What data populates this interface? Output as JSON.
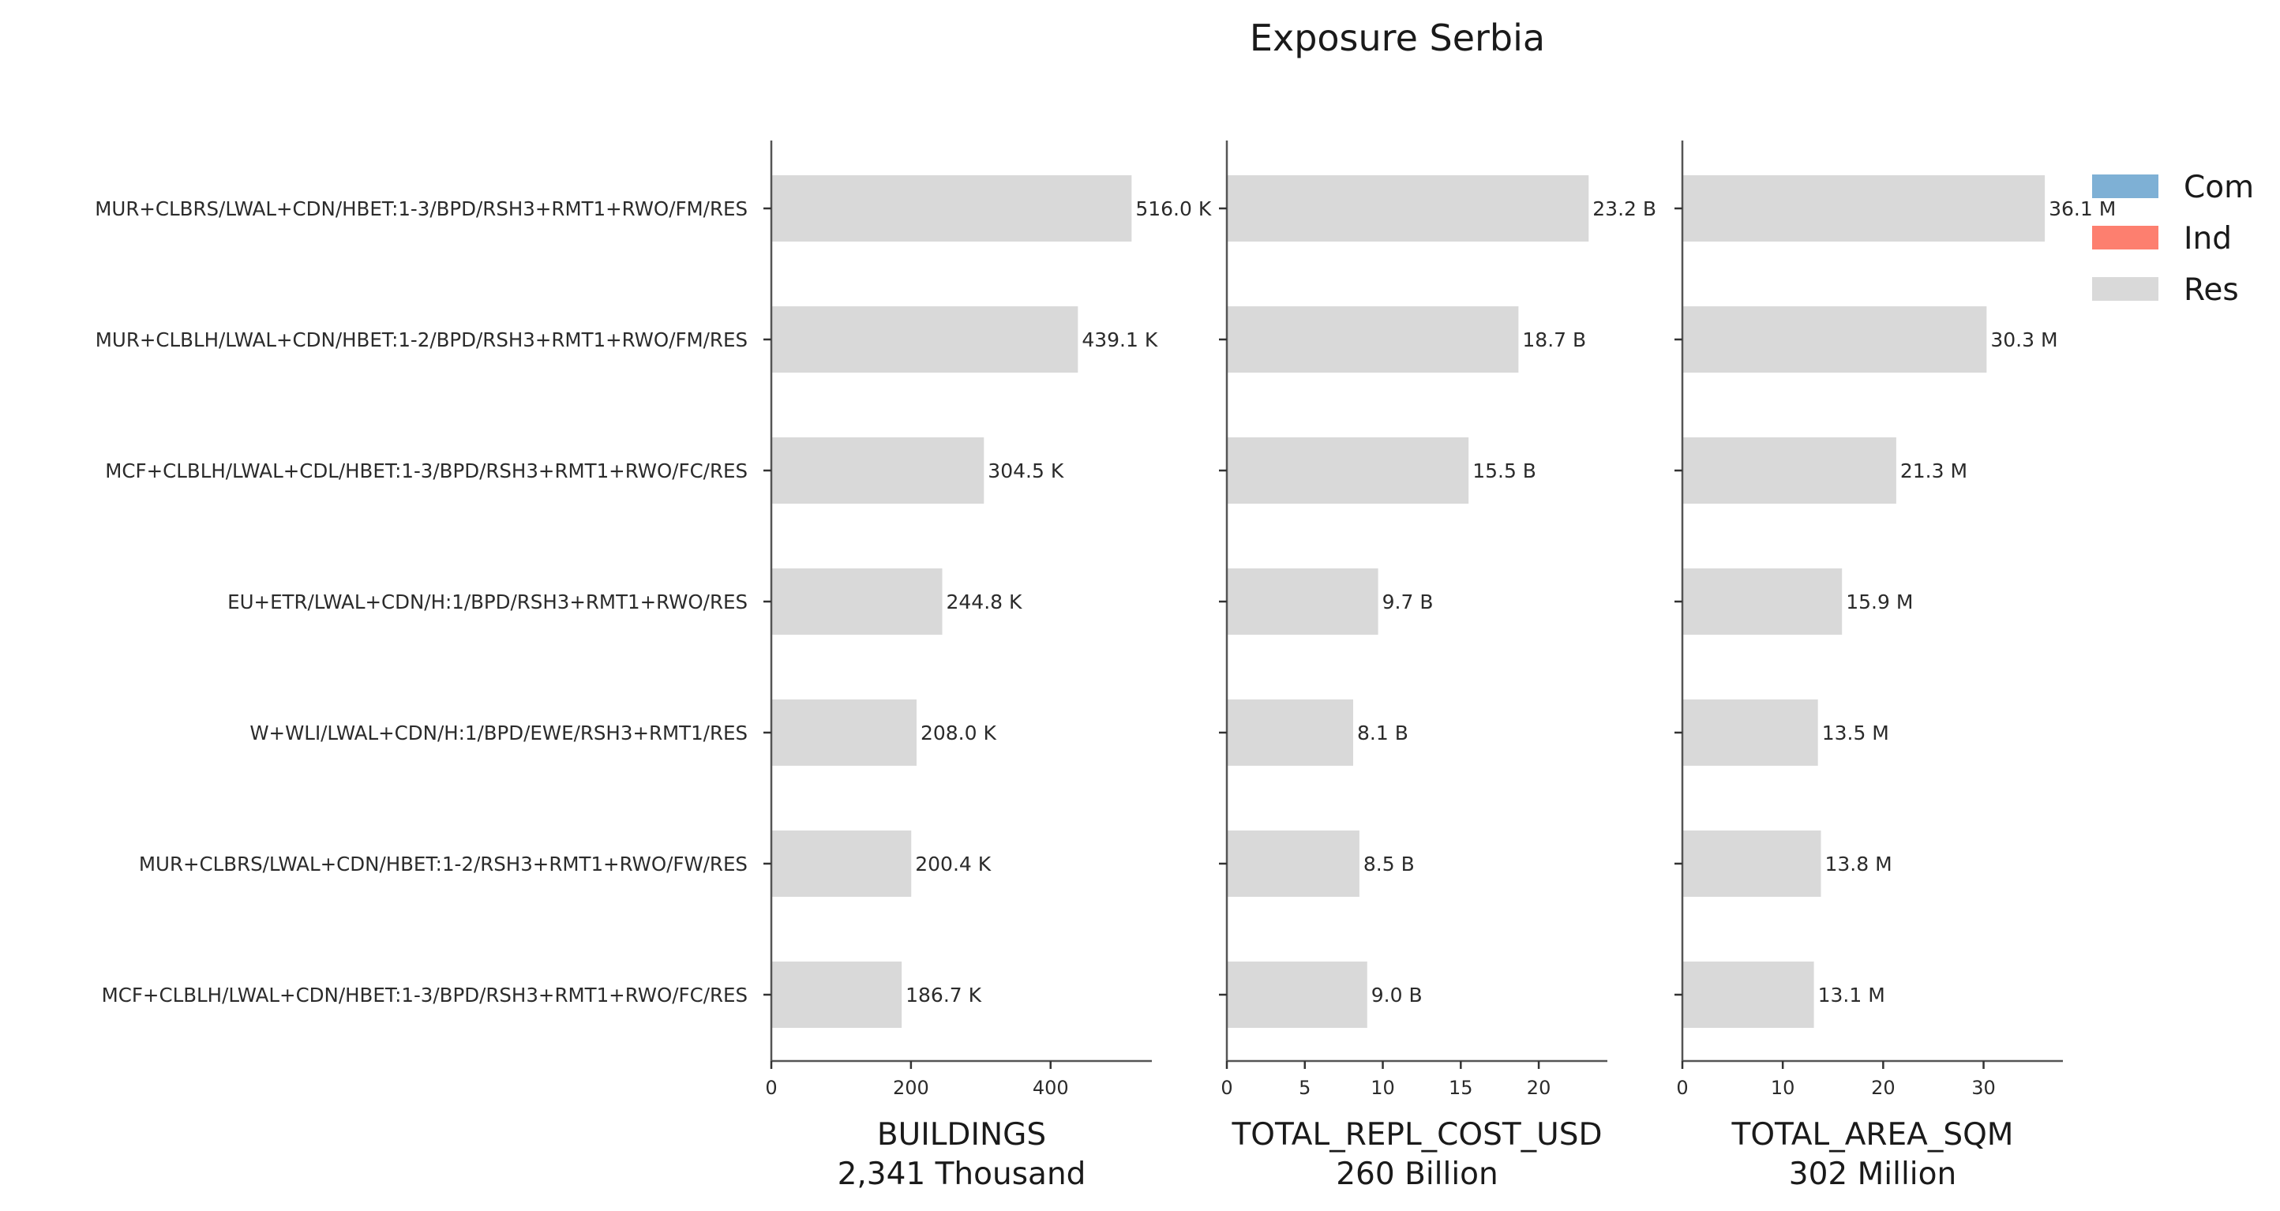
{
  "chart_data": {
    "type": "bar",
    "orientation": "horizontal",
    "title": "Exposure Serbia",
    "categories": [
      "MUR+CLBRS/LWAL+CDN/HBET:1-3/BPD/RSH3+RMT1+RWO/FM/RES",
      "MUR+CLBLH/LWAL+CDN/HBET:1-2/BPD/RSH3+RMT1+RWO/FM/RES",
      "MCF+CLBLH/LWAL+CDL/HBET:1-3/BPD/RSH3+RMT1+RWO/FC/RES",
      "EU+ETR/LWAL+CDN/H:1/BPD/RSH3+RMT1+RWO/RES",
      "W+WLI/LWAL+CDN/H:1/BPD/EWE/RSH3+RMT1/RES",
      "MUR+CLBRS/LWAL+CDN/HBET:1-2/RSH3+RMT1+RWO/FW/RES",
      "MCF+CLBLH/LWAL+CDN/HBET:1-3/BPD/RSH3+RMT1+RWO/FC/RES"
    ],
    "panels": [
      {
        "xlabel": "BUILDINGS",
        "subtitle": "2,341 Thousand",
        "xlim": [
          0,
          545
        ],
        "ticks": [
          0,
          200,
          400
        ],
        "values": [
          516.0,
          439.1,
          304.5,
          244.8,
          208.0,
          200.4,
          186.7
        ],
        "value_labels": [
          "516.0 K",
          "439.1 K",
          "304.5 K",
          "244.8 K",
          "208.0 K",
          "200.4 K",
          "186.7 K"
        ]
      },
      {
        "xlabel": "TOTAL_REPL_COST_USD",
        "subtitle": "260 Billion",
        "xlim": [
          0,
          24.4
        ],
        "ticks": [
          0,
          5,
          10,
          15,
          20
        ],
        "values": [
          23.2,
          18.7,
          15.5,
          9.7,
          8.1,
          8.5,
          9.0
        ],
        "value_labels": [
          "23.2 B",
          "18.7 B",
          "15.5 B",
          "9.7 B",
          "8.1 B",
          "8.5 B",
          "9.0 B"
        ]
      },
      {
        "xlabel": "TOTAL_AREA_SQM",
        "subtitle": "302 Million",
        "xlim": [
          0,
          37.9
        ],
        "ticks": [
          0,
          10,
          20,
          30
        ],
        "values": [
          36.1,
          30.3,
          21.3,
          15.9,
          13.5,
          13.8,
          13.1
        ],
        "value_labels": [
          "36.1 M",
          "30.3 M",
          "21.3 M",
          "15.9 M",
          "13.5 M",
          "13.8 M",
          "13.1 M"
        ]
      }
    ],
    "series_colors": {
      "Res": "#d9d9d9"
    },
    "legend": {
      "placement": "top-right",
      "entries": [
        {
          "label": "Com",
          "color": "#7eb0d5"
        },
        {
          "label": "Ind",
          "color": "#fd7f6f"
        },
        {
          "label": "Res",
          "color": "#d9d9d9"
        }
      ]
    },
    "grid": false
  }
}
